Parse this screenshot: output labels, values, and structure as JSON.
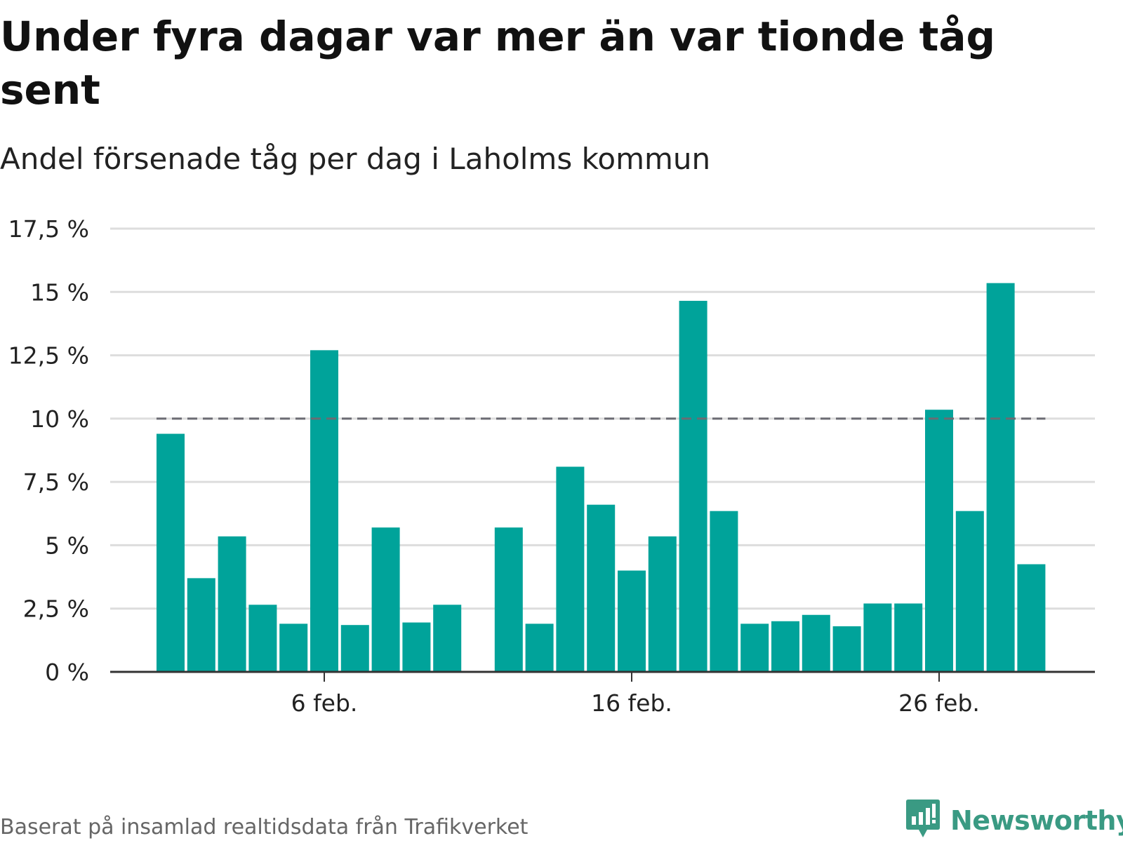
{
  "title": "Under fyra dagar var mer än var tionde tåg sent",
  "subtitle": "Andel försenade tåg per dag i Laholms kommun",
  "footer": "Baserat på insamlad realtidsdata från Trafikverket",
  "logo": {
    "name": "Newsworthy",
    "icon": "bar-chart-speech-icon",
    "color": "#3a9a83"
  },
  "colors": {
    "bar": "#00a39a",
    "reference_line": "#6b6b73",
    "grid": "#dddddd",
    "axis": "#333333"
  },
  "chart_data": {
    "type": "bar",
    "title": "Under fyra dagar var mer än var tionde tåg sent",
    "subtitle": "Andel försenade tåg per dag i Laholms kommun",
    "xlabel": "",
    "ylabel": "",
    "unit": "%",
    "ylim": [
      0,
      17.5
    ],
    "y_ticks": [
      0,
      2.5,
      5,
      7.5,
      10,
      12.5,
      15,
      17.5
    ],
    "y_tick_labels": [
      "0 %",
      "2,5 %",
      "5 %",
      "7,5 %",
      "10 %",
      "12,5 %",
      "15 %",
      "17,5 %"
    ],
    "x_tick_labels": [
      {
        "date": "2024-02-06",
        "label": "6 feb."
      },
      {
        "date": "2024-02-16",
        "label": "16 feb."
      },
      {
        "date": "2024-02-26",
        "label": "26 feb."
      }
    ],
    "grid": true,
    "reference_line": {
      "value": 10,
      "style": "dashed",
      "x_start": "2024-02-01",
      "x_end": "2024-02-29"
    },
    "points": [
      {
        "date": "2024-02-01",
        "value": 9.4
      },
      {
        "date": "2024-02-02",
        "value": 3.7
      },
      {
        "date": "2024-02-03",
        "value": 5.35
      },
      {
        "date": "2024-02-04",
        "value": 2.65
      },
      {
        "date": "2024-02-05",
        "value": 1.9
      },
      {
        "date": "2024-02-06",
        "value": 12.7
      },
      {
        "date": "2024-02-07",
        "value": 1.85
      },
      {
        "date": "2024-02-08",
        "value": 5.7
      },
      {
        "date": "2024-02-09",
        "value": 1.95
      },
      {
        "date": "2024-02-10",
        "value": 2.65
      },
      {
        "date": "2024-02-12",
        "value": 5.7
      },
      {
        "date": "2024-02-13",
        "value": 1.9
      },
      {
        "date": "2024-02-14",
        "value": 8.1
      },
      {
        "date": "2024-02-15",
        "value": 6.6
      },
      {
        "date": "2024-02-16",
        "value": 4.0
      },
      {
        "date": "2024-02-17",
        "value": 5.35
      },
      {
        "date": "2024-02-18",
        "value": 14.65
      },
      {
        "date": "2024-02-19",
        "value": 6.35
      },
      {
        "date": "2024-02-20",
        "value": 1.9
      },
      {
        "date": "2024-02-21",
        "value": 2.0
      },
      {
        "date": "2024-02-22",
        "value": 2.25
      },
      {
        "date": "2024-02-23",
        "value": 1.8
      },
      {
        "date": "2024-02-24",
        "value": 2.7
      },
      {
        "date": "2024-02-25",
        "value": 2.7
      },
      {
        "date": "2024-02-26",
        "value": 10.35
      },
      {
        "date": "2024-02-27",
        "value": 6.35
      },
      {
        "date": "2024-02-28",
        "value": 15.35
      },
      {
        "date": "2024-02-29",
        "value": 4.25
      }
    ]
  }
}
